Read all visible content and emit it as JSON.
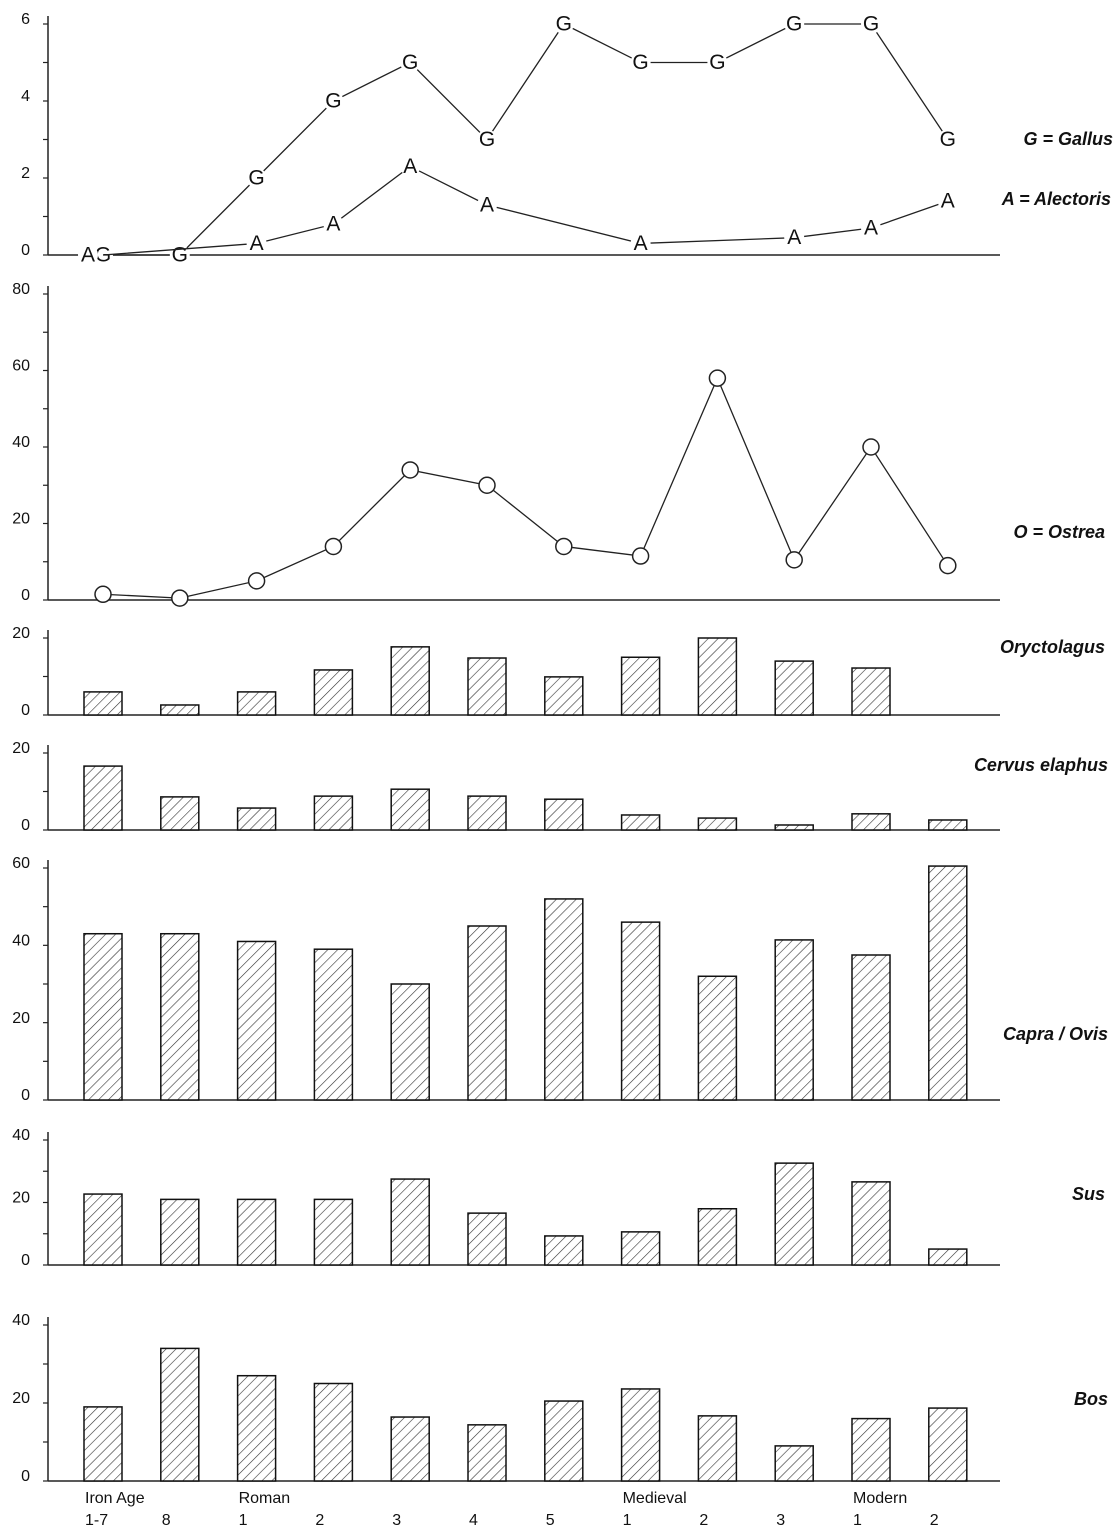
{
  "chart_data": [
    {
      "type": "line",
      "ylim": [
        0,
        6
      ],
      "yticks": [
        0,
        2,
        4,
        6
      ],
      "minor_yticks": [
        1,
        3,
        5
      ],
      "span_gaps": true,
      "series": [
        {
          "name": "G = Gallus",
          "marker": "G",
          "color": "#222",
          "values": [
            0,
            0,
            2,
            4,
            5,
            3,
            6,
            5,
            5,
            6,
            6,
            3
          ]
        },
        {
          "name": "A = Alectoris",
          "marker": "A",
          "color": "#222",
          "values": [
            0,
            null,
            0.3,
            0.8,
            2.3,
            1.3,
            null,
            0.3,
            null,
            0.45,
            0.7,
            1.4
          ]
        }
      ]
    },
    {
      "type": "line",
      "ylim": [
        0,
        80
      ],
      "yticks": [
        0,
        20,
        40,
        60,
        80
      ],
      "minor_yticks": [
        10,
        30,
        50,
        70
      ],
      "span_gaps": true,
      "series": [
        {
          "name": "O = Ostrea",
          "marker": "circle",
          "color": "#222",
          "values": [
            1.5,
            0.5,
            5,
            14,
            34,
            30,
            14,
            11.5,
            58,
            10.5,
            40,
            9
          ]
        }
      ]
    },
    {
      "type": "bar",
      "label": "Oryctolagus",
      "ylim": [
        0,
        20
      ],
      "yticks": [
        0,
        20
      ],
      "minor_yticks": [
        10
      ],
      "values": [
        6,
        2.6,
        6,
        11.7,
        17.7,
        14.8,
        9.9,
        15,
        20,
        14,
        12.2,
        null
      ]
    },
    {
      "type": "bar",
      "label": "Cervus elaphus",
      "ylim": [
        0,
        20
      ],
      "yticks": [
        0,
        20
      ],
      "minor_yticks": [
        10
      ],
      "values": [
        16.6,
        8.6,
        5.7,
        8.8,
        10.6,
        8.8,
        8,
        3.9,
        3.1,
        1.3,
        4.2,
        2.6
      ]
    },
    {
      "type": "bar",
      "label": "Capra / Ovis",
      "ylim": [
        0,
        60
      ],
      "yticks": [
        0,
        20,
        40,
        60
      ],
      "minor_yticks": [
        10,
        30,
        50
      ],
      "values": [
        43,
        43,
        41,
        39,
        30,
        45,
        52,
        46,
        32,
        41.4,
        37.5,
        60.5
      ]
    },
    {
      "type": "bar",
      "label": "Sus",
      "ylim": [
        0,
        40
      ],
      "yticks": [
        0,
        20,
        40
      ],
      "minor_yticks": [
        10,
        30
      ],
      "values": [
        22.7,
        21,
        21,
        21,
        27.5,
        16.6,
        9.3,
        10.6,
        18,
        32.6,
        26.6,
        5.1
      ]
    },
    {
      "type": "bar",
      "label": "Bos",
      "ylim": [
        0,
        40
      ],
      "yticks": [
        0,
        20,
        40
      ],
      "minor_yticks": [
        10,
        30
      ],
      "values": [
        19,
        34,
        27,
        25,
        16.4,
        14.4,
        20.5,
        23.6,
        16.7,
        9,
        16,
        18.7
      ],
      "categories": [
        "1-7",
        "8",
        "1",
        "2",
        "3",
        "4",
        "5",
        "1",
        "2",
        "3",
        "1",
        "2"
      ],
      "periods": [
        "Iron Age",
        null,
        "Roman",
        null,
        null,
        null,
        null,
        "Medieval",
        null,
        null,
        "Modern",
        null
      ]
    }
  ]
}
